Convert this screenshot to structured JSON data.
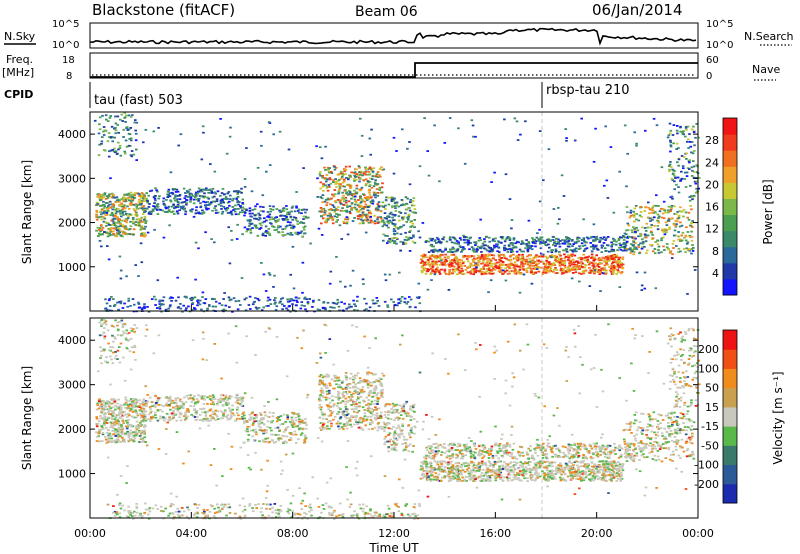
{
  "header": {
    "station": "Blackstone (fitACF)",
    "beam": "Beam 06",
    "date": "06/Jan/2014"
  },
  "top_panels": {
    "nsky_label": "N.Sky",
    "nsearch_label": "N.Search",
    "noise_ticks": [
      "10^5",
      "10^0"
    ],
    "freq_label_1": "Freq.",
    "freq_label_2": "[MHz]",
    "freq_ticks": [
      "18",
      "8"
    ],
    "nave_label": "Nave",
    "nave_ticks": [
      "60",
      "0"
    ],
    "cpid_label": "CPID",
    "cpid_segments": [
      {
        "name": "tau (fast) 503",
        "start_hour": 0
      },
      {
        "name": "rbsp-tau 210",
        "start_hour": 18.0
      }
    ]
  },
  "chart_data": [
    {
      "type": "heatmap",
      "ylabel": "Slant Range [km]",
      "xlabel": "Time UT",
      "x_ticks": [
        "00:00",
        "04:00",
        "08:00",
        "12:00",
        "16:00",
        "20:00",
        "00:00"
      ],
      "xlim_hours": [
        0,
        24
      ],
      "ylim_km": [
        0,
        4500
      ],
      "y_ticks": [
        1000,
        2000,
        3000,
        4000
      ],
      "colorbar_label": "Power [dB]",
      "colorbar_ticks": [
        "28",
        "24",
        "20",
        "16",
        "12",
        "8",
        "4"
      ],
      "colorbar_colors": [
        "#1414ff",
        "#1f3aa8",
        "#2a6a9a",
        "#3a8a6a",
        "#4aa050",
        "#7ab84a",
        "#c8c832",
        "#f0a028",
        "#f07020",
        "#f03c1c",
        "#f01414"
      ]
    },
    {
      "type": "heatmap",
      "ylabel": "Slant Range [km]",
      "xlabel": "Time UT",
      "x_ticks": [
        "00:00",
        "04:00",
        "08:00",
        "12:00",
        "16:00",
        "20:00",
        "00:00"
      ],
      "xlim_hours": [
        0,
        24
      ],
      "ylim_km": [
        0,
        4500
      ],
      "y_ticks": [
        1000,
        2000,
        3000,
        4000
      ],
      "colorbar_label": "Velocity [m s⁻¹]",
      "colorbar_ticks": [
        "200",
        "100",
        "50",
        "15",
        "-15",
        "-50",
        "-100",
        "-200"
      ],
      "colorbar_colors": [
        "#1c2ab0",
        "#2c5a98",
        "#3a7a6a",
        "#58b84a",
        "#c8c8bc",
        "#c8a050",
        "#f08c1c",
        "#f05014",
        "#ee1414"
      ]
    }
  ]
}
